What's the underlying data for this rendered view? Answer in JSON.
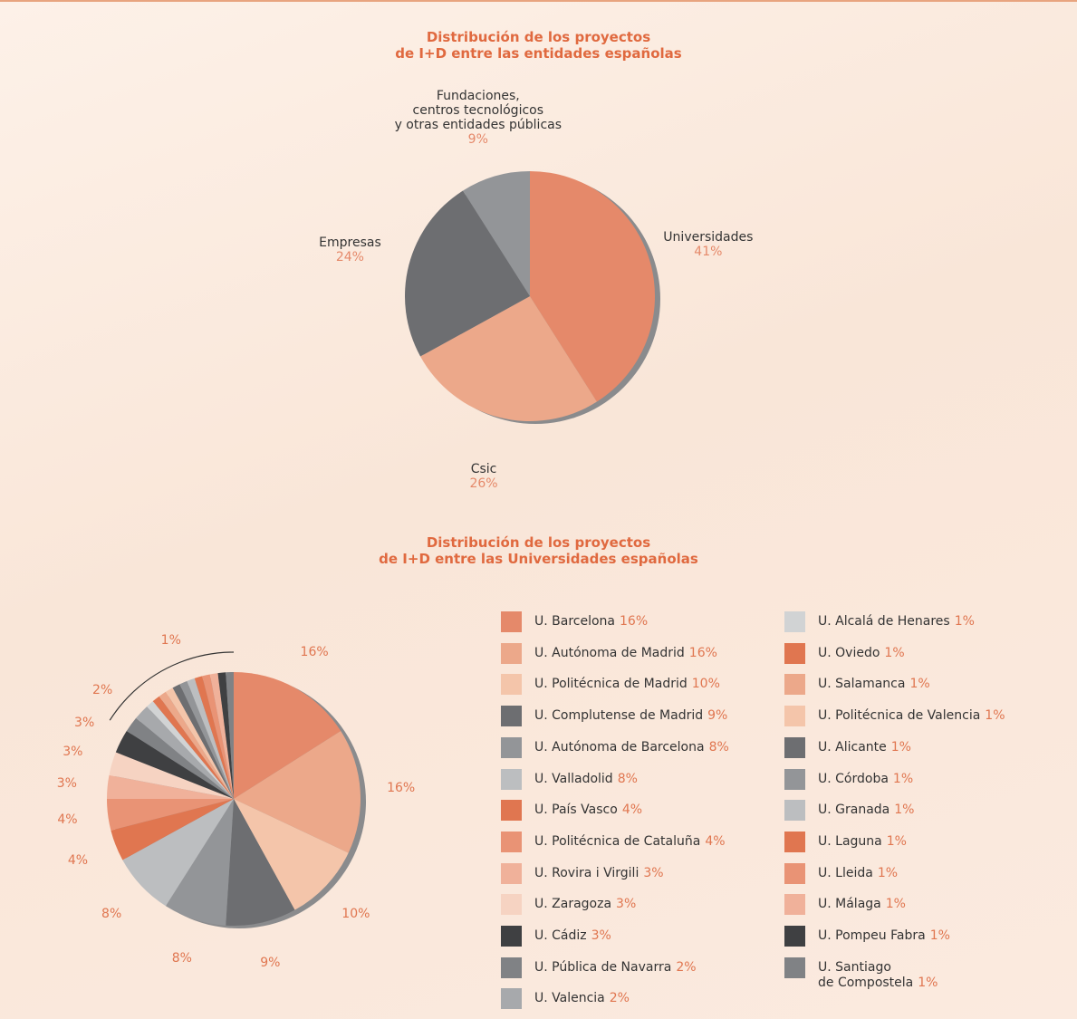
{
  "chart_data": [
    {
      "type": "pie",
      "title": [
        "Distribución de los proyectos",
        "de I+D entre las entidades españolas"
      ],
      "categories": [
        "Universidades",
        "Csic",
        "Empresas",
        "Fundaciones,\ncentros tecnológicos\ny otras entidades públicas"
      ],
      "values": [
        41,
        26,
        24,
        9
      ],
      "value_labels": [
        "41%",
        "26%",
        "24%",
        "9%"
      ],
      "colors": [
        "#e5896a",
        "#eca88a",
        "#6d6e71",
        "#939598"
      ]
    },
    {
      "type": "pie",
      "title": [
        "Distribución de los proyectos",
        "de I+D entre las Universidades españolas"
      ],
      "categories": [
        "U. Barcelona",
        "U. Autónoma de Madrid",
        "U. Politécnica de Madrid",
        "U. Complutense de Madrid",
        "U. Autónoma de Barcelona",
        "U. Valladolid",
        "U. País Vasco",
        "U. Politécnica de Cataluña",
        "U. Rovira i Virgili",
        "U. Zaragoza",
        "U. Cádiz",
        "U. Pública de Navarra",
        "U. Valencia",
        "U. Alcalá de Henares",
        "U. Oviedo",
        "U. Salamanca",
        "U. Politécnica de Valencia",
        "U. Alicante",
        "U. Córdoba",
        "U. Granada",
        "U. Laguna",
        "U. Lleida",
        "U. Málaga",
        "U. Pompeu Fabra",
        "U. Santiago\nde Compostela"
      ],
      "values": [
        16,
        16,
        10,
        9,
        8,
        8,
        4,
        4,
        3,
        3,
        3,
        2,
        2,
        1,
        1,
        1,
        1,
        1,
        1,
        1,
        1,
        1,
        1,
        1,
        1
      ],
      "value_labels": [
        "16%",
        "16%",
        "10%",
        "9%",
        "8%",
        "8%",
        "4%",
        "4%",
        "3%",
        "3%",
        "3%",
        "2%",
        "2%",
        "1%",
        "1%",
        "1%",
        "1%",
        "1%",
        "1%",
        "1%",
        "1%",
        "1%",
        "1%",
        "1%",
        "1%"
      ],
      "colors": [
        "#e5896a",
        "#eca88a",
        "#f4c5aa",
        "#6d6e71",
        "#939598",
        "#bcbec0",
        "#e07650",
        "#e99375",
        "#f0b19a",
        "#f6d3c2",
        "#3f4042",
        "#808285",
        "#a7a9ac",
        "#d1d3d4",
        "#e07650",
        "#eca88a",
        "#f4c5aa",
        "#6d6e71",
        "#939598",
        "#bcbec0",
        "#e07650",
        "#e99375",
        "#f0b19a",
        "#3f4042",
        "#808285"
      ],
      "legend": true
    }
  ]
}
